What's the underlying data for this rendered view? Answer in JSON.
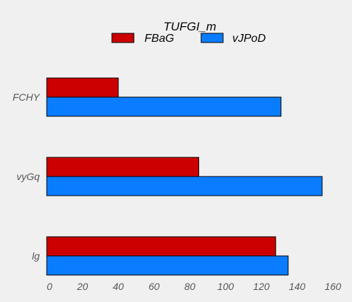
{
  "chart_data": {
    "type": "bar",
    "orientation": "horizontal",
    "title": "TUFGI_m",
    "categories": [
      "FCHY",
      "vyGq",
      "lg"
    ],
    "series": [
      {
        "name": "FBaG",
        "color": "#cc0000",
        "values": [
          40,
          85,
          128
        ]
      },
      {
        "name": "vJPoD",
        "color": "#0a7cff",
        "values": [
          131,
          154,
          135
        ]
      }
    ],
    "xlim": [
      0,
      160
    ],
    "xticks": [
      "0",
      "20",
      "40",
      "60",
      "80",
      "100",
      "120",
      "140",
      "160"
    ],
    "legend_position": "top-center",
    "grid": false
  }
}
